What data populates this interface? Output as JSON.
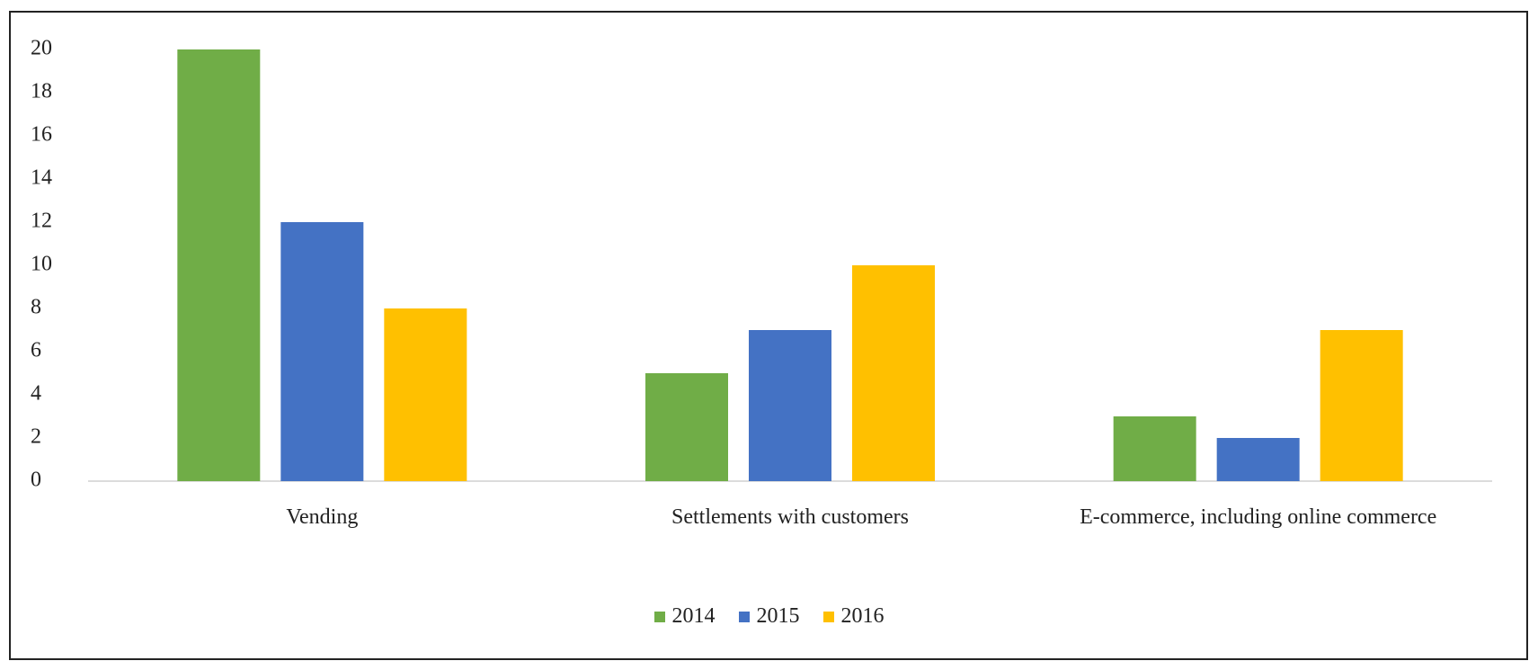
{
  "chart_data": {
    "type": "bar",
    "categories": [
      "Vending",
      "Settlements with customers",
      "E-commerce, including online commerce"
    ],
    "series": [
      {
        "name": "2014",
        "color": "#70ad47",
        "values": [
          20,
          5,
          3
        ]
      },
      {
        "name": "2015",
        "color": "#4472c4",
        "values": [
          12,
          7,
          2
        ]
      },
      {
        "name": "2016",
        "color": "#ffc000",
        "values": [
          8,
          10,
          7
        ]
      }
    ],
    "ylim": [
      0,
      20
    ],
    "yticks": [
      0,
      2,
      4,
      6,
      8,
      10,
      12,
      14,
      16,
      18,
      20
    ],
    "legend": "bottom"
  }
}
